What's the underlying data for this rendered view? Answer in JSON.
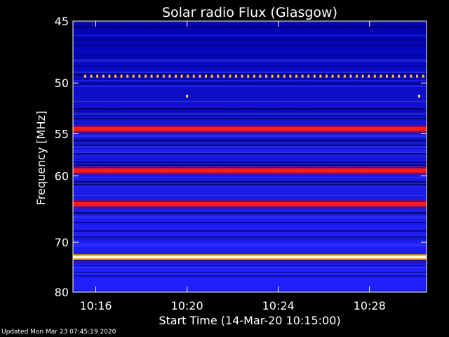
{
  "chart_data": {
    "type": "heatmap",
    "title": "Solar radio Flux (Glasgow)",
    "xlabel": "Start Time (14-Mar-20 10:15:00)",
    "ylabel": "Frequency [MHz]",
    "x_range_minutes": [
      "10:15:00",
      "10:30:30"
    ],
    "x_ticks": [
      "10:16",
      "10:20",
      "10:24",
      "10:28"
    ],
    "y_range_mhz": [
      45,
      80
    ],
    "y_ticks": [
      45,
      50,
      55,
      60,
      70,
      80
    ],
    "y_scale": "reciprocal",
    "colormap": [
      "#000010",
      "#0000c8",
      "#3232ff",
      "#a00000",
      "#ff2020",
      "#ffd000",
      "#ffffff"
    ],
    "background_level": "blue",
    "bands": [
      {
        "freq_mhz": 49.4,
        "intensity": "orange",
        "pattern": "dotted"
      },
      {
        "freq_mhz": 51.2,
        "intensity": "orange",
        "pattern": "sparse"
      },
      {
        "freq_mhz": 54.5,
        "intensity": "red"
      },
      {
        "freq_mhz": 59.3,
        "intensity": "red"
      },
      {
        "freq_mhz": 63.9,
        "intensity": "red"
      },
      {
        "freq_mhz": 72.7,
        "intensity": "white"
      }
    ]
  },
  "footer": {
    "updated": "Updated Mon Mar 23 07:45:19 2020"
  }
}
